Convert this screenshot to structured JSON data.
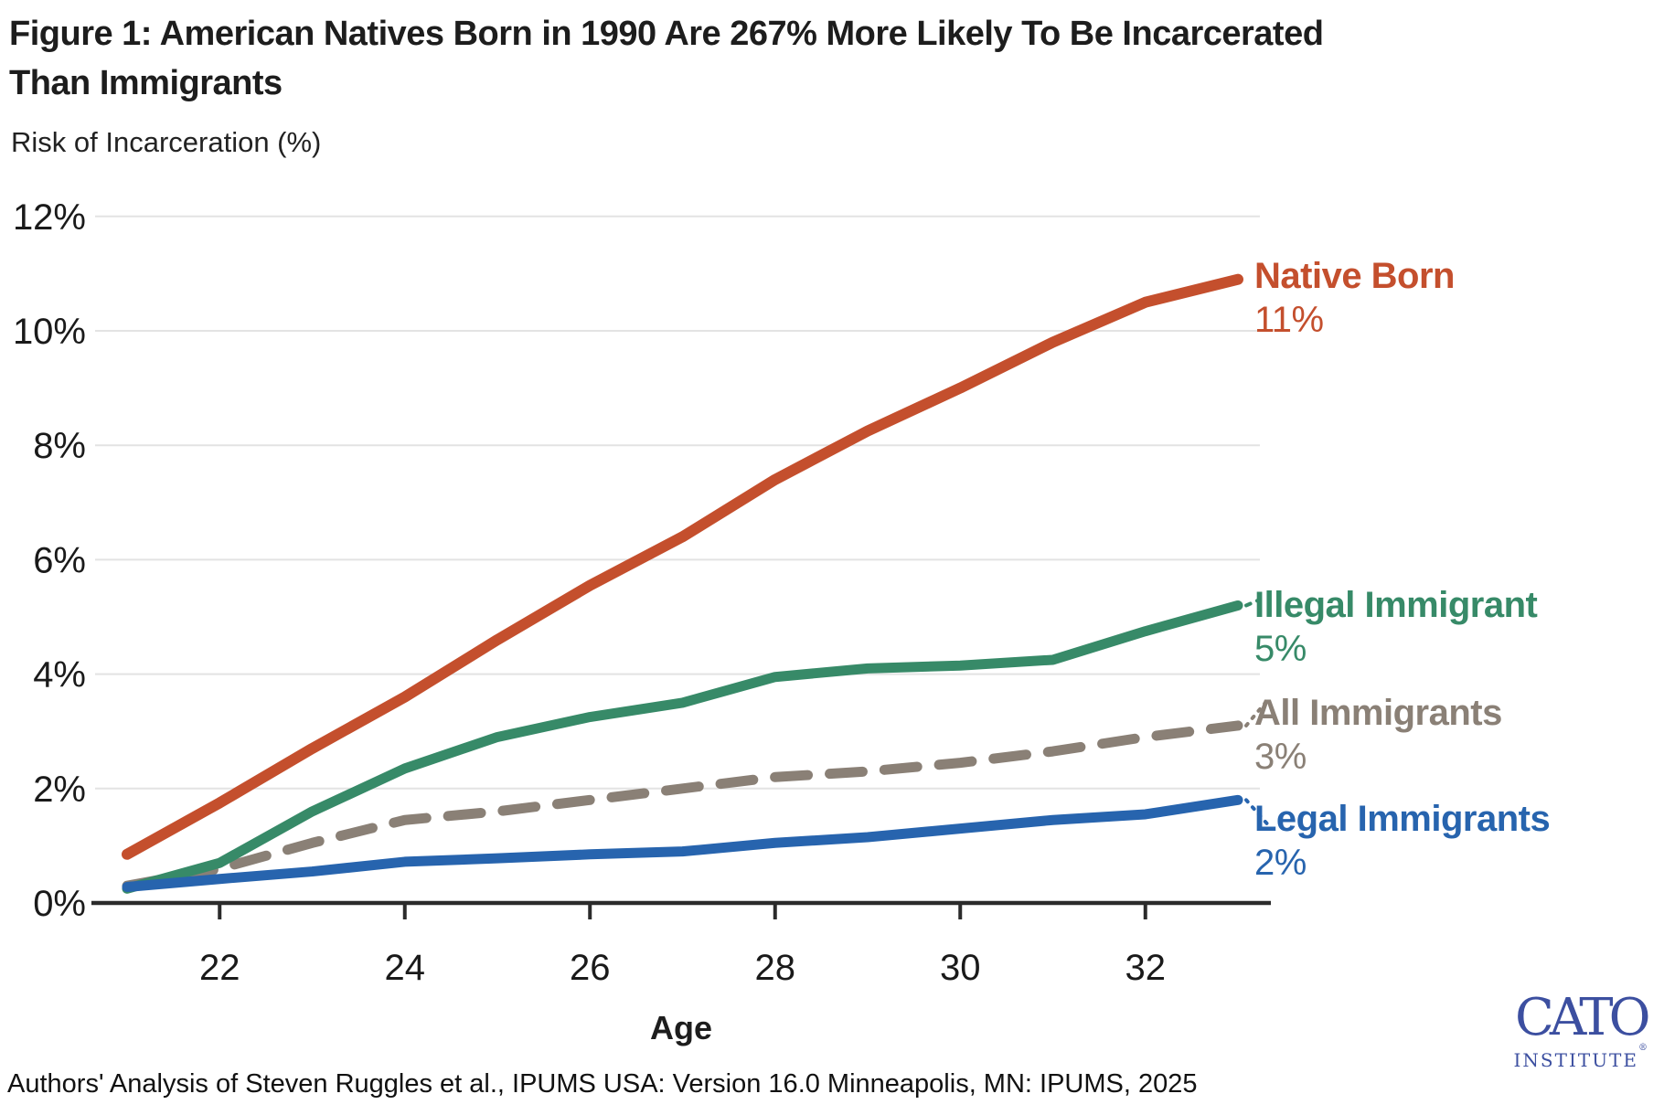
{
  "figure": {
    "title_line1": "Figure 1: American Natives Born in 1990 Are 267% More Likely To Be Incarcerated",
    "title_line2": "Than Immigrants",
    "subtitle": "Risk of Incarceration (%)",
    "source_note": "Authors' Analysis of Steven Ruggles et al., IPUMS USA: Version 16.0 Minneapolis, MN: IPUMS, 2025"
  },
  "logo": {
    "primary": "CATO",
    "secondary": "INSTITUTE",
    "registered_mark": "®",
    "color": "#3c4fa0"
  },
  "chart_data": {
    "type": "line",
    "title": "Figure 1: American Natives Born in 1990 Are 267% More Likely To Be Incarcerated Than Immigrants",
    "xlabel": "Age",
    "ylabel": "Risk of Incarceration (%)",
    "xlim": [
      21,
      33
    ],
    "ylim": [
      0,
      12
    ],
    "grid": "horizontal",
    "legend_position": "right-end-labels",
    "x": [
      21,
      22,
      23,
      24,
      25,
      26,
      27,
      28,
      29,
      30,
      31,
      32,
      33
    ],
    "xticks": [
      "22",
      "24",
      "26",
      "28",
      "30",
      "32"
    ],
    "yticks": [
      "0%",
      "2%",
      "4%",
      "6%",
      "8%",
      "10%",
      "12%"
    ],
    "series": [
      {
        "name": "Native Born",
        "end_label": "11%",
        "color": "#c44f2d",
        "style": "solid",
        "values": [
          0.85,
          1.75,
          2.7,
          3.6,
          4.6,
          5.55,
          6.4,
          7.4,
          8.25,
          9.0,
          9.8,
          10.5,
          10.9
        ]
      },
      {
        "name": "Illegal Immigrant",
        "end_label": "5%",
        "color": "#378a68",
        "style": "solid",
        "values": [
          0.25,
          0.7,
          1.6,
          2.35,
          2.9,
          3.25,
          3.5,
          3.95,
          4.1,
          4.15,
          4.25,
          4.75,
          5.2
        ]
      },
      {
        "name": "All Immigrants",
        "end_label": "3%",
        "color": "#8a8076",
        "style": "dashed",
        "values": [
          0.3,
          0.6,
          1.05,
          1.45,
          1.6,
          1.8,
          2.0,
          2.2,
          2.3,
          2.45,
          2.65,
          2.9,
          3.1
        ]
      },
      {
        "name": "Legal Immigrants",
        "end_label": "2%",
        "color": "#2764ae",
        "style": "solid",
        "values": [
          0.28,
          0.42,
          0.55,
          0.72,
          0.78,
          0.85,
          0.9,
          1.05,
          1.15,
          1.3,
          1.45,
          1.55,
          1.8
        ]
      }
    ],
    "colors": {
      "axis": "#2b2b2b",
      "gridline": "#e3e3e3",
      "text": "#1a1a1a"
    }
  }
}
